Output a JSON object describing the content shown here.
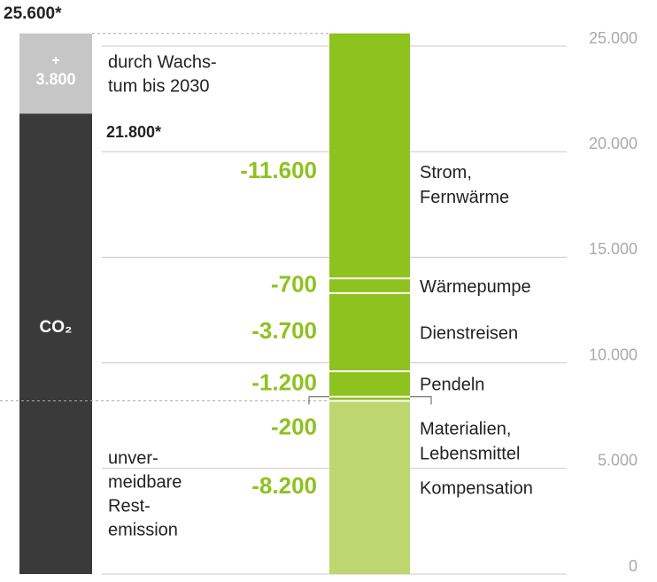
{
  "chart_data": {
    "type": "waterfall",
    "ylim": [
      0,
      25000
    ],
    "yticks": [
      {
        "value": 0,
        "label": "0"
      },
      {
        "value": 5000,
        "label": "5.000"
      },
      {
        "value": 10000,
        "label": "10.000"
      },
      {
        "value": 15000,
        "label": "15.000"
      },
      {
        "value": 20000,
        "label": "20.000"
      },
      {
        "value": 25000,
        "label": "25.000"
      }
    ],
    "total": {
      "value": 25600,
      "label": "25.600*"
    },
    "baseline": {
      "value": 21800,
      "label": "21.800*"
    },
    "growth": {
      "value": 3800,
      "sign": "+",
      "label": "3.800",
      "text": [
        "durch Wachs-",
        "tum bis 2030"
      ],
      "color": "#c6c6c6"
    },
    "emissions": {
      "label": "CO₂",
      "color": "#3a3a3a",
      "residual_text": [
        "unver-",
        "meidbare",
        "Rest-",
        "emission"
      ]
    },
    "categories": [
      [
        "Strom,",
        "Fernwärme"
      ],
      [
        "Wärmepumpe"
      ],
      [
        "Dienstreisen"
      ],
      [
        "Pendeln"
      ],
      [
        "Materialien,",
        "Lebensmittel"
      ],
      [
        "Kompensation"
      ]
    ],
    "values": [
      -11600,
      -700,
      -3700,
      -1200,
      -200,
      -8200
    ],
    "value_labels": [
      "-11.600",
      "-700",
      "-3.700",
      "-1.200",
      "-200",
      "-8.200"
    ],
    "colors": [
      "#8dc21f",
      "#8dc21f",
      "#8dc21f",
      "#8dc21f",
      "#8dc21f",
      "#bdd66f"
    ],
    "label_color": "#8dc21f"
  }
}
